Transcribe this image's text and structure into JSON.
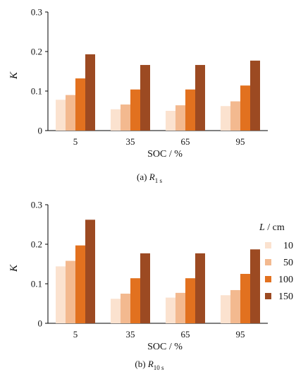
{
  "chart_data": [
    {
      "type": "bar",
      "categories": [
        "5",
        "35",
        "65",
        "95"
      ],
      "series": [
        {
          "name": "10",
          "values": [
            0.078,
            0.054,
            0.05,
            0.062
          ]
        },
        {
          "name": "50",
          "values": [
            0.09,
            0.066,
            0.064,
            0.074
          ]
        },
        {
          "name": "100",
          "values": [
            0.132,
            0.104,
            0.104,
            0.114
          ]
        },
        {
          "name": "150",
          "values": [
            0.193,
            0.166,
            0.166,
            0.177
          ]
        }
      ],
      "xlabel": "SOC / %",
      "ylabel": "K",
      "ylim": [
        0,
        0.3
      ],
      "yticks": [
        "0",
        "0.1",
        "0.2",
        "0.3"
      ],
      "caption": {
        "prefix": "(a)",
        "symbol": "R",
        "subscript": "1 s"
      }
    },
    {
      "type": "bar",
      "categories": [
        "5",
        "35",
        "65",
        "95"
      ],
      "series": [
        {
          "name": "10",
          "values": [
            0.144,
            0.062,
            0.065,
            0.071
          ]
        },
        {
          "name": "50",
          "values": [
            0.158,
            0.075,
            0.077,
            0.084
          ]
        },
        {
          "name": "100",
          "values": [
            0.197,
            0.114,
            0.114,
            0.125
          ]
        },
        {
          "name": "150",
          "values": [
            0.262,
            0.177,
            0.177,
            0.187
          ]
        }
      ],
      "xlabel": "SOC / %",
      "ylabel": "K",
      "ylim": [
        0,
        0.3
      ],
      "yticks": [
        "0",
        "0.1",
        "0.2",
        "0.3"
      ],
      "caption": {
        "prefix": "(b)",
        "symbol": "R",
        "subscript": "10 s"
      }
    }
  ],
  "legend": {
    "title_symbol": "L",
    "title_unit": "/ cm",
    "entries": [
      "10",
      "50",
      "100",
      "150"
    ],
    "placement": "right"
  },
  "colors": {
    "10": "#fbe2cf",
    "50": "#f3b98f",
    "100": "#e2711f",
    "150": "#9c4a22"
  }
}
